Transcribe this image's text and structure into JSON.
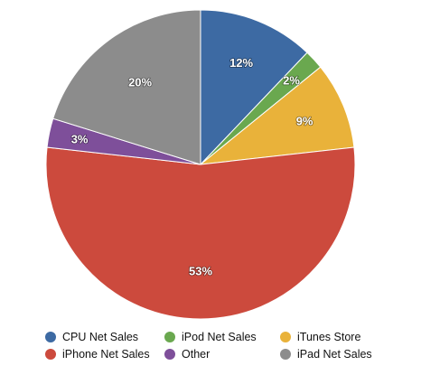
{
  "chart_data": {
    "type": "pie",
    "categories": [
      "CPU Net Sales",
      "iPod Net Sales",
      "iTunes Store",
      "iPhone Net Sales",
      "Other",
      "iPad Net Sales"
    ],
    "values": [
      12,
      2,
      9,
      53,
      3,
      20
    ],
    "labels": [
      "12%",
      "2%",
      "9%",
      "53%",
      "3%",
      "20%"
    ],
    "colors": [
      "#3d6aa3",
      "#6aa84f",
      "#e9b23a",
      "#cc4a3d",
      "#7e4f9a",
      "#8c8c8c"
    ],
    "start_angle": "12 o'clock",
    "direction": "clockwise",
    "legend_position": "bottom"
  }
}
